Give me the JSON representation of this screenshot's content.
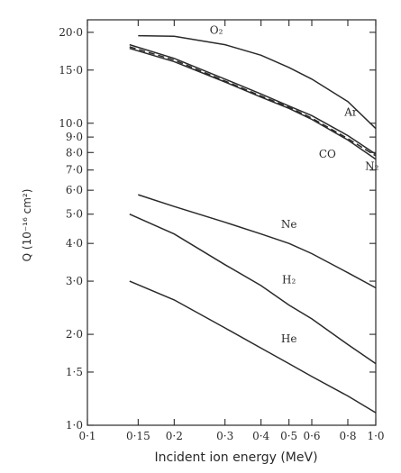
{
  "chart_data": {
    "type": "line",
    "xlabel": "Incident ion energy (MeV)",
    "ylabel": "Q (10⁻¹⁶ cm²)",
    "xscale": "log",
    "yscale": "log",
    "xlim": [
      0.1,
      1.0
    ],
    "ylim": [
      1.0,
      22.0
    ],
    "grid": false,
    "x_ticks": [
      {
        "v": 0.1,
        "label": "0·1"
      },
      {
        "v": 0.15,
        "label": "0·15"
      },
      {
        "v": 0.2,
        "label": "0·2"
      },
      {
        "v": 0.3,
        "label": "0·3"
      },
      {
        "v": 0.4,
        "label": "0·4"
      },
      {
        "v": 0.5,
        "label": "0·5"
      },
      {
        "v": 0.6,
        "label": "0·6"
      },
      {
        "v": 0.8,
        "label": "0·8"
      },
      {
        "v": 1.0,
        "label": "1·0"
      }
    ],
    "y_ticks": [
      {
        "v": 1.0,
        "label": "1·0"
      },
      {
        "v": 1.5,
        "label": "1·5"
      },
      {
        "v": 2.0,
        "label": "2·0"
      },
      {
        "v": 3.0,
        "label": "3·0"
      },
      {
        "v": 4.0,
        "label": "4·0"
      },
      {
        "v": 5.0,
        "label": "5·0"
      },
      {
        "v": 6.0,
        "label": "6·0"
      },
      {
        "v": 7.0,
        "label": "7·0"
      },
      {
        "v": 8.0,
        "label": "8·0"
      },
      {
        "v": 9.0,
        "label": "9·0"
      },
      {
        "v": 10.0,
        "label": "10·0"
      },
      {
        "v": 15.0,
        "label": "15·0"
      },
      {
        "v": 20.0,
        "label": "20·0"
      }
    ],
    "series": [
      {
        "name": "O₂",
        "dash": "",
        "x": [
          0.15,
          0.2,
          0.3,
          0.4,
          0.5,
          0.6,
          0.8,
          1.0
        ],
        "y": [
          19.5,
          19.4,
          18.2,
          16.8,
          15.3,
          14.0,
          11.8,
          9.6
        ]
      },
      {
        "name": "Ar",
        "dash": "",
        "x": [
          0.14,
          0.2,
          0.3,
          0.4,
          0.5,
          0.6,
          0.8,
          1.0
        ],
        "y": [
          18.2,
          16.4,
          14.0,
          12.5,
          11.4,
          10.6,
          9.1,
          7.9
        ]
      },
      {
        "name": "CO",
        "dash": "7 4",
        "x": [
          0.14,
          0.2,
          0.3,
          0.4,
          0.5,
          0.6,
          0.8,
          1.0
        ],
        "y": [
          17.9,
          16.2,
          13.8,
          12.3,
          11.3,
          10.4,
          8.9,
          7.8
        ]
      },
      {
        "name": "N₂",
        "dash": "",
        "x": [
          0.14,
          0.2,
          0.3,
          0.4,
          0.5,
          0.6,
          0.8,
          1.0
        ],
        "y": [
          17.7,
          16.0,
          13.7,
          12.2,
          11.2,
          10.3,
          8.8,
          7.6
        ]
      },
      {
        "name": "Ne",
        "dash": "",
        "x": [
          0.15,
          0.2,
          0.3,
          0.4,
          0.5,
          0.6,
          0.8,
          1.0
        ],
        "y": [
          5.8,
          5.3,
          4.7,
          4.3,
          4.0,
          3.7,
          3.2,
          2.85
        ]
      },
      {
        "name": "H₂",
        "dash": "",
        "x": [
          0.14,
          0.2,
          0.3,
          0.4,
          0.5,
          0.6,
          0.8,
          1.0
        ],
        "y": [
          5.0,
          4.3,
          3.4,
          2.9,
          2.5,
          2.25,
          1.85,
          1.6
        ]
      },
      {
        "name": "He",
        "dash": "",
        "x": [
          0.14,
          0.2,
          0.3,
          0.4,
          0.5,
          0.6,
          0.8,
          1.0
        ],
        "y": [
          3.0,
          2.6,
          2.1,
          1.8,
          1.6,
          1.45,
          1.25,
          1.1
        ]
      }
    ],
    "annotations": [
      {
        "text": "O₂",
        "series": "O₂",
        "x": 0.28,
        "y": 19.8
      },
      {
        "text": "Ar",
        "series": "Ar",
        "x": 0.82,
        "y": 10.6
      },
      {
        "text": "CO",
        "series": "CO",
        "x": 0.68,
        "y": 7.7
      },
      {
        "text": "N₂",
        "series": "N₂",
        "x": 0.97,
        "y": 7.0
      },
      {
        "text": "Ne",
        "series": "Ne",
        "x": 0.5,
        "y": 4.5
      },
      {
        "text": "H₂",
        "series": "H₂",
        "x": 0.5,
        "y": 2.95
      },
      {
        "text": "He",
        "series": "He",
        "x": 0.5,
        "y": 1.88
      }
    ]
  }
}
